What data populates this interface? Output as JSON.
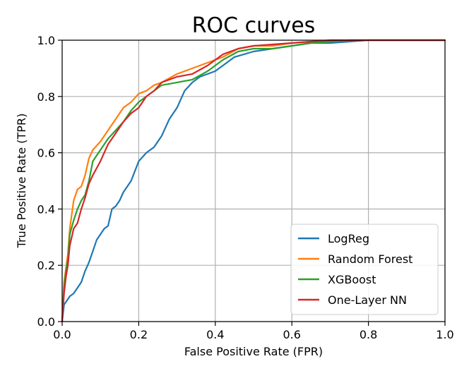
{
  "chart_data": {
    "type": "line",
    "title": "ROC curves",
    "xlabel": "False Positive Rate (FPR)",
    "ylabel": "True Positive Rate (TPR)",
    "xlim": [
      0.0,
      1.0
    ],
    "ylim": [
      0.0,
      1.0
    ],
    "xticks": [
      "0.0",
      "0.2",
      "0.4",
      "0.6",
      "0.8",
      "1.0"
    ],
    "yticks": [
      "0.0",
      "0.2",
      "0.4",
      "0.6",
      "0.8",
      "1.0"
    ],
    "grid": true,
    "legend_position": "lower-right",
    "series": [
      {
        "name": "LogReg",
        "color": "#1f77b4",
        "x": [
          0.0,
          0.005,
          0.01,
          0.02,
          0.03,
          0.04,
          0.05,
          0.06,
          0.07,
          0.08,
          0.09,
          0.1,
          0.11,
          0.12,
          0.13,
          0.14,
          0.15,
          0.16,
          0.18,
          0.2,
          0.22,
          0.24,
          0.26,
          0.28,
          0.3,
          0.32,
          0.34,
          0.36,
          0.38,
          0.4,
          0.45,
          0.5,
          0.55,
          0.6,
          0.65,
          0.7,
          0.75,
          0.8,
          0.85,
          0.9,
          0.95,
          1.0
        ],
        "y": [
          0.0,
          0.06,
          0.07,
          0.09,
          0.1,
          0.12,
          0.14,
          0.18,
          0.21,
          0.25,
          0.29,
          0.31,
          0.33,
          0.34,
          0.4,
          0.41,
          0.43,
          0.46,
          0.5,
          0.57,
          0.6,
          0.62,
          0.66,
          0.72,
          0.76,
          0.82,
          0.85,
          0.87,
          0.88,
          0.89,
          0.94,
          0.96,
          0.97,
          0.98,
          0.99,
          0.99,
          0.995,
          1.0,
          1.0,
          1.0,
          1.0,
          1.0
        ]
      },
      {
        "name": "Random Forest",
        "color": "#ff7f0e",
        "x": [
          0.0,
          0.005,
          0.01,
          0.015,
          0.02,
          0.03,
          0.04,
          0.05,
          0.06,
          0.07,
          0.08,
          0.1,
          0.12,
          0.14,
          0.16,
          0.18,
          0.2,
          0.22,
          0.24,
          0.26,
          0.3,
          0.34,
          0.38,
          0.42,
          0.46,
          0.5,
          0.55,
          0.6,
          0.65,
          0.7,
          0.75,
          0.8,
          0.9,
          1.0
        ],
        "y": [
          0.0,
          0.14,
          0.19,
          0.24,
          0.33,
          0.43,
          0.47,
          0.48,
          0.52,
          0.58,
          0.61,
          0.64,
          0.68,
          0.72,
          0.76,
          0.78,
          0.81,
          0.82,
          0.84,
          0.85,
          0.88,
          0.9,
          0.92,
          0.94,
          0.97,
          0.98,
          0.98,
          0.99,
          0.995,
          0.995,
          1.0,
          1.0,
          1.0,
          1.0
        ]
      },
      {
        "name": "XGBoost",
        "color": "#2ca02c",
        "x": [
          0.0,
          0.005,
          0.01,
          0.015,
          0.02,
          0.03,
          0.04,
          0.05,
          0.06,
          0.07,
          0.08,
          0.1,
          0.12,
          0.14,
          0.16,
          0.18,
          0.2,
          0.22,
          0.24,
          0.26,
          0.3,
          0.34,
          0.38,
          0.42,
          0.46,
          0.5,
          0.55,
          0.6,
          0.65,
          0.7,
          0.75,
          0.8,
          0.9,
          1.0
        ],
        "y": [
          0.0,
          0.12,
          0.18,
          0.22,
          0.31,
          0.36,
          0.4,
          0.43,
          0.45,
          0.5,
          0.57,
          0.61,
          0.65,
          0.68,
          0.71,
          0.75,
          0.78,
          0.8,
          0.82,
          0.84,
          0.85,
          0.86,
          0.89,
          0.93,
          0.96,
          0.97,
          0.97,
          0.98,
          0.99,
          0.995,
          1.0,
          1.0,
          1.0,
          1.0
        ]
      },
      {
        "name": "One-Layer NN",
        "color": "#d62728",
        "x": [
          0.0,
          0.005,
          0.01,
          0.015,
          0.02,
          0.03,
          0.04,
          0.05,
          0.06,
          0.07,
          0.08,
          0.1,
          0.12,
          0.14,
          0.16,
          0.18,
          0.2,
          0.22,
          0.24,
          0.26,
          0.3,
          0.34,
          0.38,
          0.42,
          0.46,
          0.5,
          0.55,
          0.6,
          0.65,
          0.7,
          0.75,
          0.8,
          0.9,
          1.0
        ],
        "y": [
          0.0,
          0.1,
          0.16,
          0.2,
          0.27,
          0.33,
          0.35,
          0.4,
          0.44,
          0.49,
          0.52,
          0.57,
          0.63,
          0.67,
          0.71,
          0.74,
          0.76,
          0.8,
          0.82,
          0.85,
          0.87,
          0.88,
          0.91,
          0.95,
          0.97,
          0.98,
          0.985,
          0.99,
          0.995,
          1.0,
          1.0,
          1.0,
          1.0,
          1.0
        ]
      }
    ]
  }
}
